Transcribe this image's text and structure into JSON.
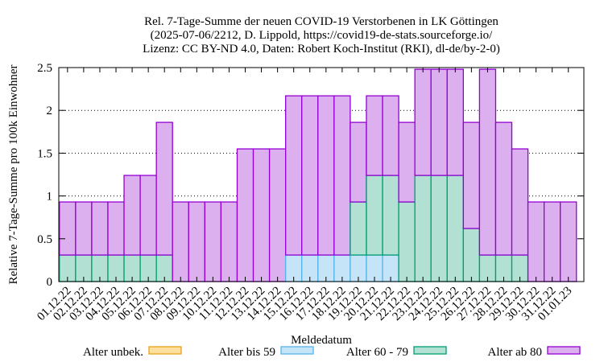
{
  "chart_data": {
    "type": "bar",
    "title_lines": [
      "Rel. 7-Tage-Summe der neuen COVID-19 Verstorbenen in LK Göttingen",
      "(2025-07-06/2212, D. Lippold, https://covid19-de-stats.sourceforge.io/",
      "Lizenz: CC BY-ND 4.0, Daten: Robert Koch-Institut (RKI), dl-de/by-2-0)"
    ],
    "xlabel": "Meldedatum",
    "ylabel": "Relative 7-Tage-Summe pro 100k Einwohner",
    "ylim": [
      0,
      2.5
    ],
    "yticks": [
      "0",
      "0.5",
      "1",
      "1.5",
      "2",
      "2.5"
    ],
    "categories": [
      "01.12.22",
      "02.12.22",
      "03.12.22",
      "04.12.22",
      "05.12.22",
      "06.12.22",
      "07.12.22",
      "08.12.22",
      "09.12.22",
      "10.12.22",
      "11.12.22",
      "12.12.22",
      "13.12.22",
      "14.12.22",
      "15.12.22",
      "16.12.22",
      "17.12.22",
      "18.12.22",
      "19.12.22",
      "20.12.22",
      "21.12.22",
      "22.12.22",
      "23.12.22",
      "24.12.22",
      "25.12.22",
      "26.12.22",
      "27.12.22",
      "28.12.22",
      "29.12.22",
      "30.12.22",
      "31.12.22",
      "01.01.23"
    ],
    "stacked": true,
    "legend_position": "bottom",
    "series": [
      {
        "name": "Alter unbek.",
        "fill": "#fde0a0",
        "stroke": "#e8a317",
        "values": [
          0,
          0,
          0,
          0,
          0,
          0,
          0,
          0,
          0,
          0,
          0,
          0,
          0,
          0,
          0,
          0,
          0,
          0,
          0,
          0,
          0,
          0,
          0,
          0,
          0,
          0,
          0,
          0,
          0,
          0,
          0,
          0
        ]
      },
      {
        "name": "Alter bis 59",
        "fill": "#c6e4f7",
        "stroke": "#56b4e9",
        "values": [
          0,
          0,
          0,
          0,
          0,
          0,
          0,
          0,
          0,
          0,
          0,
          0,
          0,
          0,
          0.31,
          0.31,
          0.31,
          0.31,
          0.31,
          0.31,
          0.31,
          0,
          0,
          0,
          0,
          0,
          0,
          0,
          0,
          0,
          0,
          0
        ]
      },
      {
        "name": "Alter 60 - 79",
        "fill": "#b2e0d2",
        "stroke": "#009e73",
        "values": [
          0.31,
          0.31,
          0.31,
          0.31,
          0.31,
          0.31,
          0.31,
          0,
          0,
          0,
          0,
          0,
          0,
          0,
          0,
          0,
          0,
          0,
          0.62,
          0.93,
          0.93,
          0.93,
          1.24,
          1.24,
          1.24,
          0.62,
          0.31,
          0.31,
          0.31,
          0,
          0,
          0
        ]
      },
      {
        "name": "Alter ab 80",
        "fill": "#dcb0ef",
        "stroke": "#9400d3",
        "values": [
          0.62,
          0.62,
          0.62,
          0.62,
          0.93,
          0.93,
          1.55,
          0.93,
          0.93,
          0.93,
          0.93,
          1.55,
          1.55,
          1.55,
          1.86,
          1.86,
          1.86,
          1.86,
          0.93,
          0.93,
          0.93,
          0.93,
          1.24,
          1.24,
          1.24,
          1.24,
          2.17,
          1.55,
          1.24,
          0.93,
          0.93,
          0.93
        ]
      }
    ]
  }
}
